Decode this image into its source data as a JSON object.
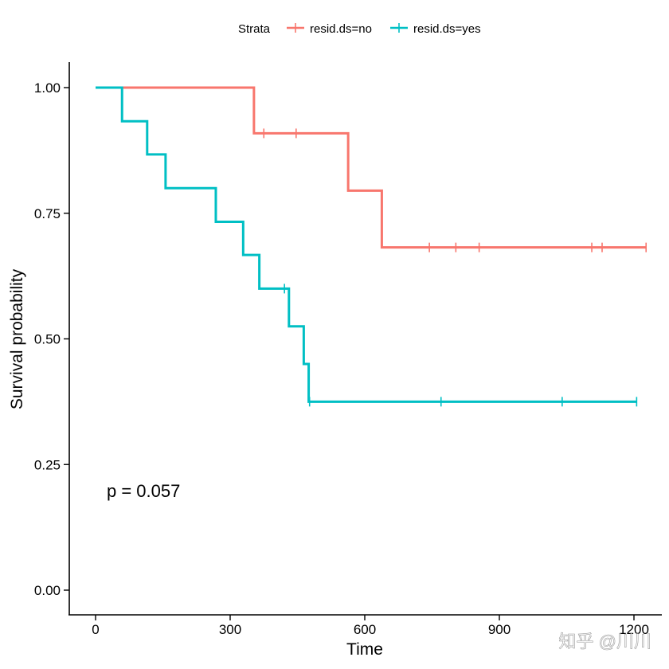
{
  "chart_data": {
    "type": "line",
    "subtype": "kaplan-meier-step",
    "xlabel": "Time",
    "ylabel": "Survival probability",
    "xlim": [
      -60,
      1260
    ],
    "ylim": [
      -0.05,
      1.05
    ],
    "xticks": [
      0,
      300,
      600,
      900,
      1200
    ],
    "yticks": [
      0.0,
      0.25,
      0.5,
      0.75,
      1.0
    ],
    "xtick_labels": [
      "0",
      "300",
      "600",
      "900",
      "1200"
    ],
    "ytick_labels": [
      "0.00",
      "0.25",
      "0.50",
      "0.75",
      "1.00"
    ],
    "grid": false,
    "legend": {
      "title": "Strata",
      "position": "top"
    },
    "annotation": "p = 0.057",
    "series": [
      {
        "name": "resid.ds=no",
        "color": "#F8766D",
        "steps": [
          [
            0,
            1.0
          ],
          [
            353,
            0.909
          ],
          [
            563,
            0.795
          ],
          [
            638,
            0.682
          ],
          [
            1227,
            0.682
          ]
        ],
        "censored": [
          [
            375,
            0.909
          ],
          [
            447,
            0.909
          ],
          [
            744,
            0.682
          ],
          [
            803,
            0.682
          ],
          [
            855,
            0.682
          ],
          [
            1106,
            0.682
          ],
          [
            1129,
            0.682
          ],
          [
            1227,
            0.682
          ]
        ]
      },
      {
        "name": "resid.ds=yes",
        "color": "#00BFC4",
        "steps": [
          [
            0,
            1.0
          ],
          [
            59,
            0.933
          ],
          [
            115,
            0.867
          ],
          [
            156,
            0.8
          ],
          [
            268,
            0.733
          ],
          [
            329,
            0.667
          ],
          [
            365,
            0.6
          ],
          [
            431,
            0.525
          ],
          [
            464,
            0.45
          ],
          [
            475,
            0.375
          ],
          [
            1206,
            0.375
          ]
        ],
        "censored": [
          [
            421,
            0.6
          ],
          [
            477,
            0.375
          ],
          [
            770,
            0.375
          ],
          [
            1040,
            0.375
          ],
          [
            1206,
            0.375
          ]
        ]
      }
    ]
  },
  "watermark": "知乎 @川川"
}
